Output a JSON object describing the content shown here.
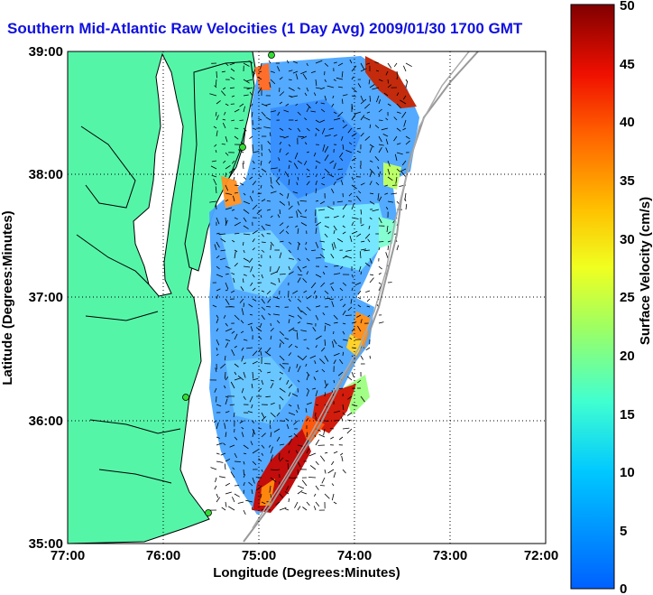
{
  "title": "Southern Mid-Atlantic Raw Velocities (1 Day Avg) 2009/01/30 1700 GMT",
  "xlabel": "Longitude (Degrees:Minutes)",
  "ylabel": "Latitude (Degrees:Minutes)",
  "x_ticks": [
    "77:00",
    "76:00",
    "75:00",
    "74:00",
    "73:00",
    "72:00"
  ],
  "y_ticks": [
    "39:00",
    "38:00",
    "37:00",
    "36:00",
    "35:00"
  ],
  "colorbar": {
    "label": "Surface Velocity (cm/s)",
    "ticks": [
      "50",
      "45",
      "40",
      "35",
      "30",
      "25",
      "20",
      "15",
      "10",
      "5",
      "0"
    ],
    "range": [
      0,
      50
    ]
  },
  "colors": {
    "land": "#55f5a8",
    "title": "#1010e0",
    "station": "#33dd33"
  }
}
